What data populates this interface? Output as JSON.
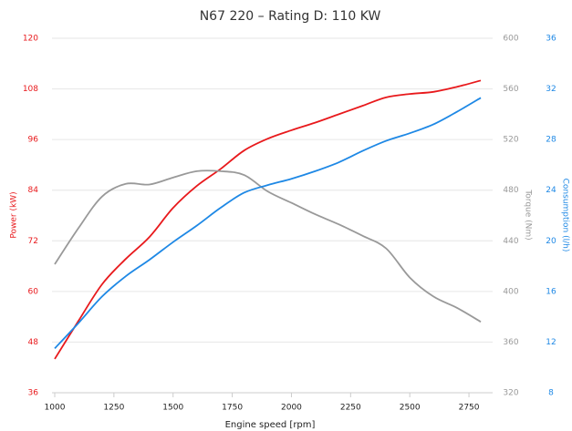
{
  "chart_data": {
    "type": "line",
    "title": "N67 220 – Rating D: 110 KW",
    "x_label": "Engine speed [rpm]",
    "y_label": "Power (kW)",
    "y2_label": "Torque (Nm)",
    "y3_label": "Consumption (l/h)",
    "x": [
      1000,
      1100,
      1200,
      1300,
      1400,
      1500,
      1600,
      1700,
      1800,
      1900,
      2000,
      2100,
      2200,
      2300,
      2400,
      2500,
      2600,
      2700,
      2800
    ],
    "xlim": [
      1000,
      2850
    ],
    "xticks": [
      1000,
      1250,
      1500,
      1750,
      2000,
      2250,
      2500,
      2750
    ],
    "ylim": [
      36,
      120
    ],
    "yticks": [
      36,
      48,
      60,
      72,
      84,
      96,
      108,
      120
    ],
    "y_color": "#e8191c",
    "y2lim": [
      320,
      600
    ],
    "y2ticks": [
      320,
      360,
      400,
      440,
      480,
      520,
      560,
      600
    ],
    "y2_color": "#999999",
    "y3lim": [
      8,
      36
    ],
    "y3ticks": [
      8,
      12,
      16,
      20,
      24,
      28,
      32,
      36
    ],
    "y3_color": "#1e88e5",
    "grid": true,
    "series": [
      {
        "color": "#e8191c",
        "axis": "y",
        "values": [
          44,
          53,
          61.7,
          67.7,
          72.9,
          79.8,
          85,
          89,
          93.4,
          96.2,
          98.2,
          100,
          102,
          104,
          106,
          106.8,
          107.3,
          108.5,
          110
        ]
      },
      {
        "color": "#999999",
        "axis": "y2",
        "values": [
          421.5,
          450,
          475,
          485,
          484.5,
          490,
          495,
          495,
          492,
          479,
          470,
          461,
          453,
          444,
          434,
          411,
          396,
          387,
          376
        ]
      },
      {
        "color": "#1e88e5",
        "axis": "y3",
        "values": [
          11.5,
          13.5,
          15.6,
          17.2,
          18.5,
          19.9,
          21.2,
          22.6,
          23.8,
          24.4,
          24.9,
          25.5,
          26.2,
          27.1,
          27.9,
          28.5,
          29.2,
          30.2,
          31.3
        ]
      }
    ]
  }
}
